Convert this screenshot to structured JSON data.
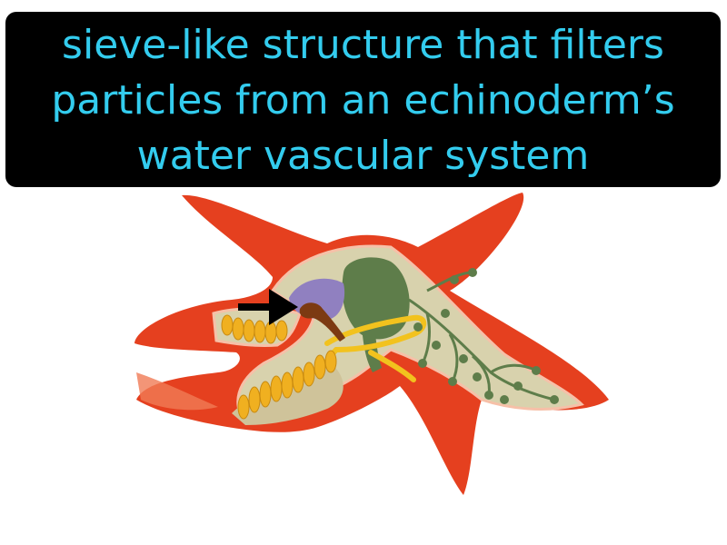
{
  "caption": {
    "lines": [
      "sieve-like structure that filters",
      "particles from an echinoderm’s",
      "water vascular system"
    ],
    "text_color": "#33ccee",
    "background_color": "#000000"
  },
  "illustration": {
    "subject": "starfish-cutaway",
    "highlighted_part": "madreporite",
    "pointer_icon": "arrow-right-icon",
    "colors": {
      "skin": "#e5401f",
      "skin_light": "#f07a55",
      "interior": "#d8d2ad",
      "stomach": "#5e7d4a",
      "ring_canal": "#f2c21e",
      "ampullae": "#f0b020",
      "madreporite": "#7c3a12",
      "polian_vesicle": "#9080c0"
    }
  }
}
